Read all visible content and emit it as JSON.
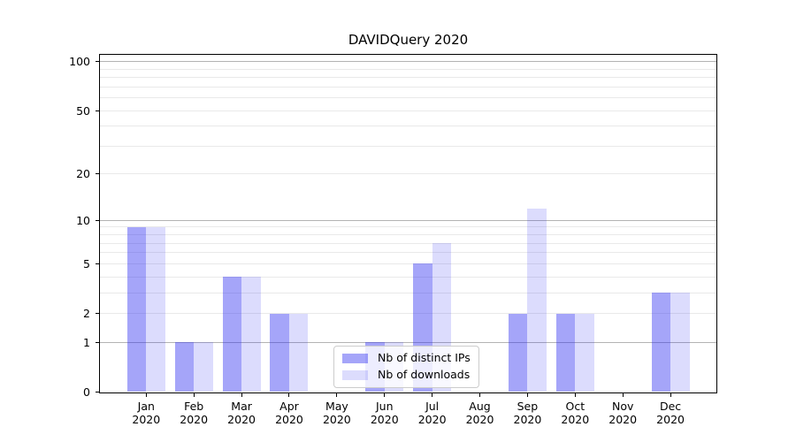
{
  "title": "DAVIDQuery 2020",
  "chart_data": {
    "type": "bar",
    "title": "DAVIDQuery 2020",
    "categories": [
      "Jan",
      "Feb",
      "Mar",
      "Apr",
      "May",
      "Jun",
      "Jul",
      "Aug",
      "Sep",
      "Oct",
      "Nov",
      "Dec"
    ],
    "x_tick_second_line": "2020",
    "series": [
      {
        "name": "Nb of distinct IPs",
        "fill": "rgba(40,40,240,0.42)",
        "approx_hex": "#a5a5f5",
        "values": [
          9,
          1,
          4,
          2,
          0,
          1,
          5,
          0,
          2,
          2,
          0,
          3
        ]
      },
      {
        "name": "Nb of downloads",
        "fill": "rgba(40,40,240,0.16)",
        "approx_hex": "#dadaf9",
        "values": [
          9,
          1,
          4,
          2,
          0,
          1,
          7,
          0,
          12,
          2,
          0,
          3
        ]
      }
    ],
    "xlabel": "",
    "ylabel": "",
    "yscale": "log1p",
    "ylim": [
      0,
      110
    ],
    "yticks": [
      0,
      1,
      2,
      5,
      10,
      20,
      50,
      100
    ],
    "gridlines": {
      "major": [
        1,
        10,
        100
      ],
      "minor": [
        2,
        3,
        4,
        5,
        6,
        7,
        8,
        9,
        20,
        30,
        40,
        50,
        60,
        70,
        80,
        90
      ],
      "major_color": "#b3b3b3",
      "minor_color": "#e9e9e9"
    },
    "legend_position": "lower center",
    "grid": true
  },
  "colors": {
    "background": "#ffffff",
    "spine": "#000000",
    "text": "#000000",
    "legend_border": "#cccccc"
  }
}
